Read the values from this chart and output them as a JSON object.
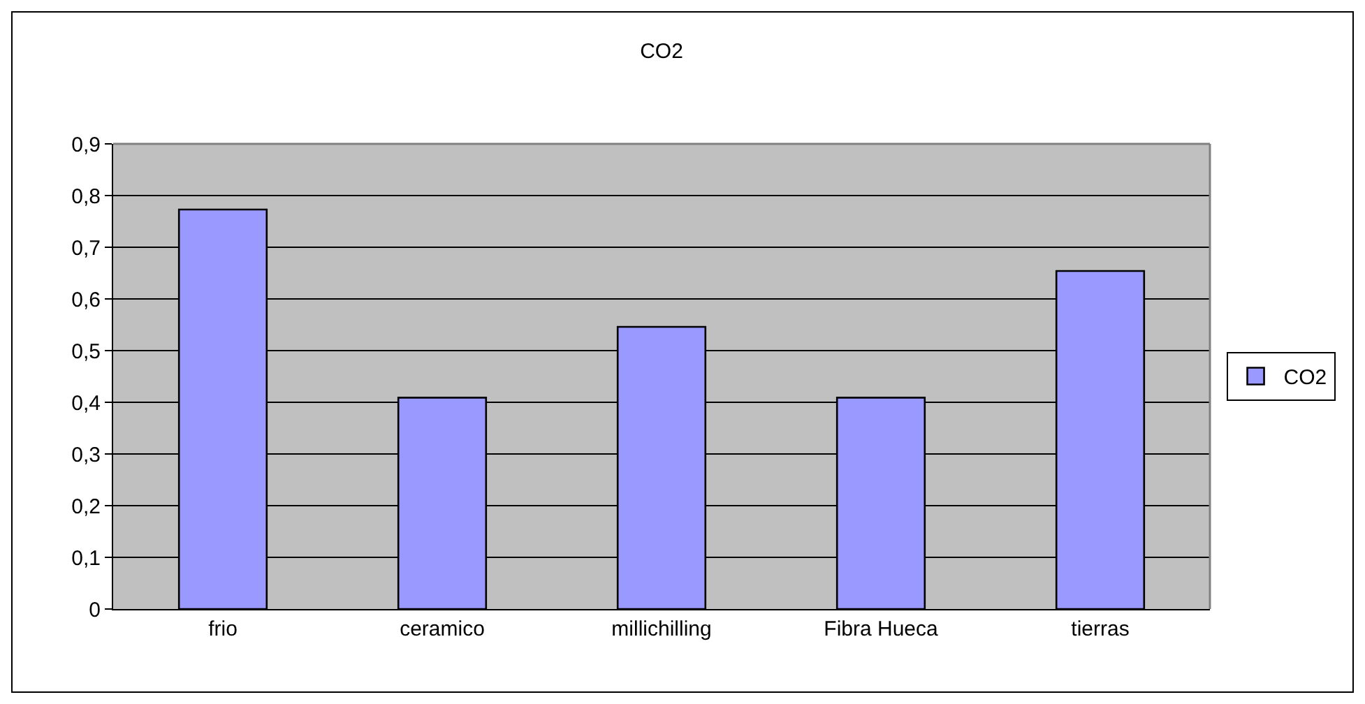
{
  "chart_data": {
    "type": "bar",
    "title": "CO2",
    "categories": [
      "frio",
      "ceramico",
      "millichilling",
      "Fibra Hueca",
      "tierras"
    ],
    "series": [
      {
        "name": "CO2",
        "color": "#9999ff",
        "values": [
          0.773,
          0.409,
          0.546,
          0.409,
          0.654
        ]
      }
    ],
    "ylim": [
      0,
      0.9
    ],
    "yticks": [
      0,
      {
        "value": 0.1,
        "label": "0,1"
      },
      {
        "value": 0.2,
        "label": "0,2"
      },
      {
        "value": 0.3,
        "label": "0,3"
      },
      {
        "value": 0.4,
        "label": "0,4"
      },
      {
        "value": 0.5,
        "label": "0,5"
      },
      {
        "value": 0.6,
        "label": "0,6"
      },
      {
        "value": 0.7,
        "label": "0,7"
      },
      {
        "value": 0.8,
        "label": "0,8"
      },
      {
        "value": 0.9,
        "label": "0,9"
      }
    ],
    "grid": "y",
    "legend": "right"
  }
}
